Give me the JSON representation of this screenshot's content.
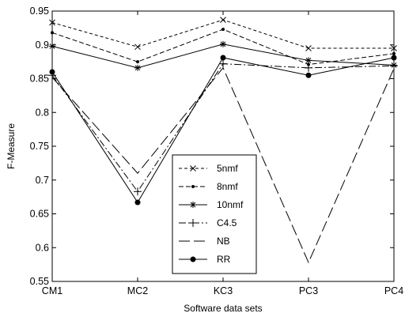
{
  "chart_data": {
    "type": "line",
    "title": "",
    "xlabel": "Software data sets",
    "ylabel": "F-Measure",
    "categories": [
      "CM1",
      "MC2",
      "KC3",
      "PC3",
      "PC4"
    ],
    "ylim": [
      0.55,
      0.95
    ],
    "yticks": [
      0.55,
      0.6,
      0.65,
      0.7,
      0.75,
      0.8,
      0.85,
      0.9,
      0.95
    ],
    "ytick_labels": [
      "0.55",
      "0.6",
      "0.65",
      "0.7",
      "0.75",
      "0.8",
      "0.85",
      "0.9",
      "0.95"
    ],
    "grid": false,
    "legend_position": "lower-center",
    "series": [
      {
        "name": "5nmf",
        "values": [
          0.933,
          0.897,
          0.937,
          0.895,
          0.895
        ],
        "dash": "4,3",
        "marker": "x",
        "color": "#000000"
      },
      {
        "name": "8nmf",
        "values": [
          0.918,
          0.875,
          0.923,
          0.871,
          0.887
        ],
        "dash": "6,3",
        "marker": "dot",
        "color": "#000000"
      },
      {
        "name": "10nmf",
        "values": [
          0.898,
          0.866,
          0.901,
          0.877,
          0.87
        ],
        "dash": "",
        "marker": "star",
        "color": "#000000"
      },
      {
        "name": "C4.5",
        "values": [
          0.855,
          0.683,
          0.872,
          0.866,
          0.869
        ],
        "dash": "9,3,2,3",
        "marker": "plus",
        "color": "#000000"
      },
      {
        "name": "NB",
        "values": [
          0.852,
          0.71,
          0.866,
          0.578,
          0.865
        ],
        "dash": "14,5",
        "marker": "none",
        "color": "#000000"
      },
      {
        "name": "RR",
        "values": [
          0.86,
          0.667,
          0.881,
          0.855,
          0.881
        ],
        "dash": "",
        "marker": "filled-circle",
        "color": "#000000"
      }
    ]
  }
}
